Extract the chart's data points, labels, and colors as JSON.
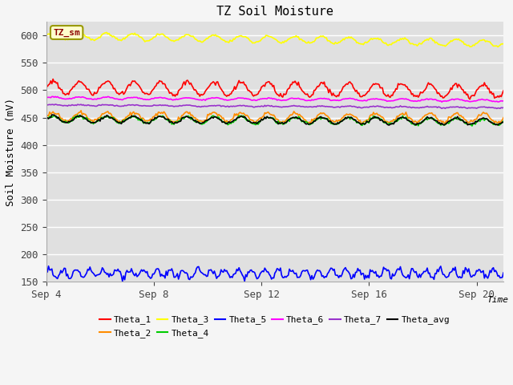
{
  "title": "TZ Soil Moisture",
  "ylabel": "Soil Moisture (mV)",
  "xlabel": "Time",
  "ylim": [
    150,
    625
  ],
  "xlim": [
    0,
    408
  ],
  "fig_facecolor": "#f5f5f5",
  "plot_facecolor": "#e0e0e0",
  "grid_color": "#ffffff",
  "label_box": "TZ_sm",
  "x_ticks": [
    0,
    96,
    192,
    288,
    384
  ],
  "x_tick_labels": [
    "Sep 4",
    "Sep 8",
    "Sep 12",
    "Sep 16",
    "Sep 20"
  ],
  "y_ticks": [
    150,
    200,
    250,
    300,
    350,
    400,
    450,
    500,
    550,
    600
  ],
  "series": [
    {
      "name": "Theta_1",
      "color": "#ff0000",
      "base": 505,
      "amplitude": 12,
      "period": 24,
      "trend": -0.016,
      "noise": 2.0,
      "seed": 1
    },
    {
      "name": "Theta_2",
      "color": "#ff8c00",
      "base": 452,
      "amplitude": 8,
      "period": 24,
      "trend": -0.008,
      "noise": 1.5,
      "seed": 2
    },
    {
      "name": "Theta_3",
      "color": "#ffff00",
      "base": 600,
      "amplitude": 6,
      "period": 24,
      "trend": -0.035,
      "noise": 1.0,
      "seed": 3
    },
    {
      "name": "Theta_4",
      "color": "#00cc00",
      "base": 447,
      "amplitude": 6,
      "period": 24,
      "trend": -0.012,
      "noise": 1.5,
      "seed": 4
    },
    {
      "name": "Theta_5",
      "color": "#0000ff",
      "base": 165,
      "amplitude": 7,
      "period": 12,
      "trend": 0.0,
      "noise": 3.0,
      "seed": 5
    },
    {
      "name": "Theta_6",
      "color": "#ff00ff",
      "base": 486,
      "amplitude": 2,
      "period": 24,
      "trend": -0.012,
      "noise": 0.5,
      "seed": 6
    },
    {
      "name": "Theta_7",
      "color": "#9933cc",
      "base": 473,
      "amplitude": 1,
      "period": 24,
      "trend": -0.012,
      "noise": 0.5,
      "seed": 7
    },
    {
      "name": "Theta_avg",
      "color": "#000000",
      "base": 447,
      "amplitude": 6,
      "period": 24,
      "trend": -0.01,
      "noise": 1.0,
      "seed": 8
    }
  ]
}
